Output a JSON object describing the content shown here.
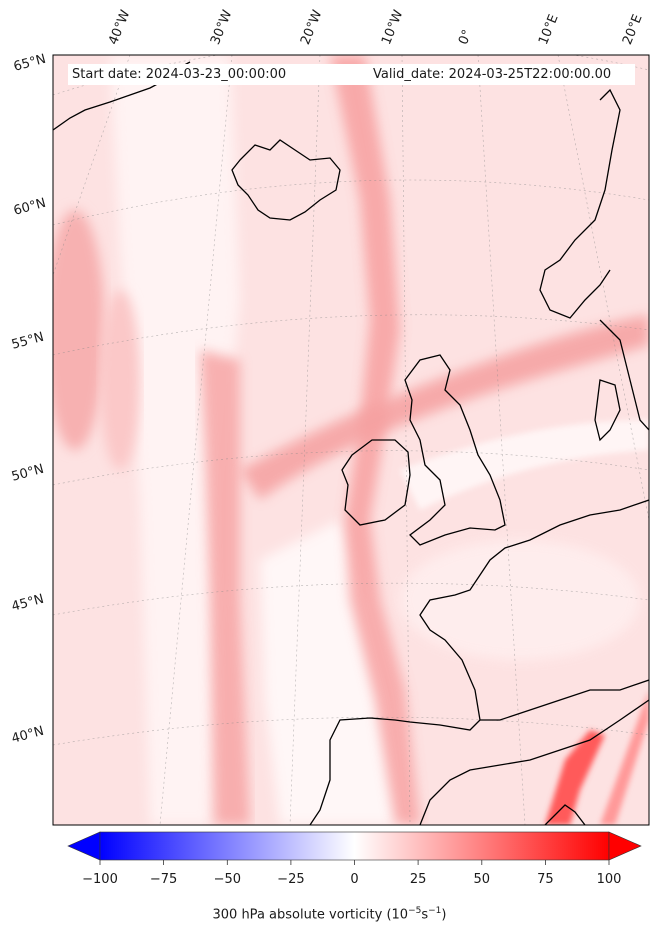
{
  "map": {
    "projection": "conic",
    "region": "North Atlantic and Europe",
    "start_date": "Start date: 2024-03-23_00:00:00",
    "valid_date": "Valid_date: 2024-03-25T22:00:00.00",
    "lon_labels": [
      "40°W",
      "30°W",
      "20°W",
      "10°W",
      "0°",
      "10°E",
      "20°E"
    ],
    "lat_labels": [
      "65°N",
      "60°N",
      "55°N",
      "50°N",
      "45°N",
      "40°N"
    ],
    "field": "300 hPa absolute vorticity",
    "colormap": "bwr",
    "gridlines": true
  },
  "colorbar": {
    "ticks": [
      "−100",
      "−75",
      "−50",
      "−25",
      "0",
      "25",
      "50",
      "75",
      "100"
    ],
    "range": [
      -100,
      100
    ],
    "extend": "both",
    "label_prefix": "300 hPa absolute vorticity (10",
    "label_exp1": "−5",
    "label_mid": "s",
    "label_exp2": "−1",
    "label_suffix": ")",
    "colors": {
      "min": "#0000ff",
      "mid": "#ffffff",
      "max": "#ff0000"
    }
  }
}
